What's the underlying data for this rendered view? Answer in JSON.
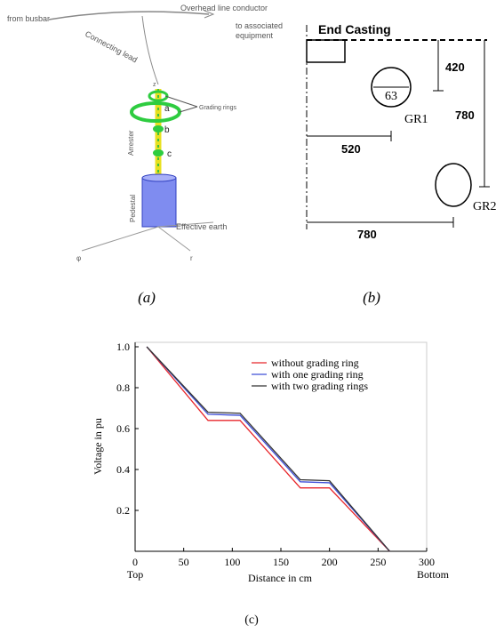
{
  "figure_a": {
    "conductor": "Overhead line conductor",
    "from": "from busbar",
    "to": [
      "to associated",
      "equipment"
    ],
    "lead": "Connecting lead",
    "axis_z": "z",
    "rings": "Grading rings",
    "points": [
      "a",
      "b",
      "c"
    ],
    "arrester": "Arrester",
    "pedestal": "Pedestal",
    "earth": "Effective earth",
    "axis_phi": "φ",
    "axis_r": "r",
    "caption": "(a)"
  },
  "figure_b": {
    "end_casting": "End Casting",
    "dim_420": "420",
    "diameter": "63",
    "gr1": "GR1",
    "dim_780_v": "780",
    "dim_520": "520",
    "gr2": "GR2",
    "dim_780_h": "780",
    "caption": "(b)"
  },
  "chart_data": {
    "type": "line",
    "ylabel": "Voltage in pu",
    "xlabel": "Distance in cm",
    "x_start_label": "Top",
    "x_end_label": "Bottom",
    "x": [
      12,
      75,
      108,
      170,
      200,
      262
    ],
    "series": [
      {
        "name": "without grading ring",
        "color": "#e8262b",
        "values": [
          1,
          0.64,
          0.64,
          0.31,
          0.31,
          0
        ]
      },
      {
        "name": "with one grading ring",
        "color": "#3f4fd8",
        "values": [
          1,
          0.67,
          0.665,
          0.34,
          0.335,
          0
        ]
      },
      {
        "name": "with two grading rings",
        "color": "#333333",
        "values": [
          1,
          0.68,
          0.675,
          0.35,
          0.345,
          0
        ]
      }
    ],
    "xlim": [
      0,
      300
    ],
    "xticks": [
      0,
      50,
      100,
      150,
      200,
      250,
      300
    ],
    "ylim": [
      0,
      1
    ],
    "yticks": [
      0.2,
      0.4,
      0.6,
      0.8,
      {
        "value": 1,
        "label": "1.0"
      }
    ],
    "caption": "(c)"
  }
}
